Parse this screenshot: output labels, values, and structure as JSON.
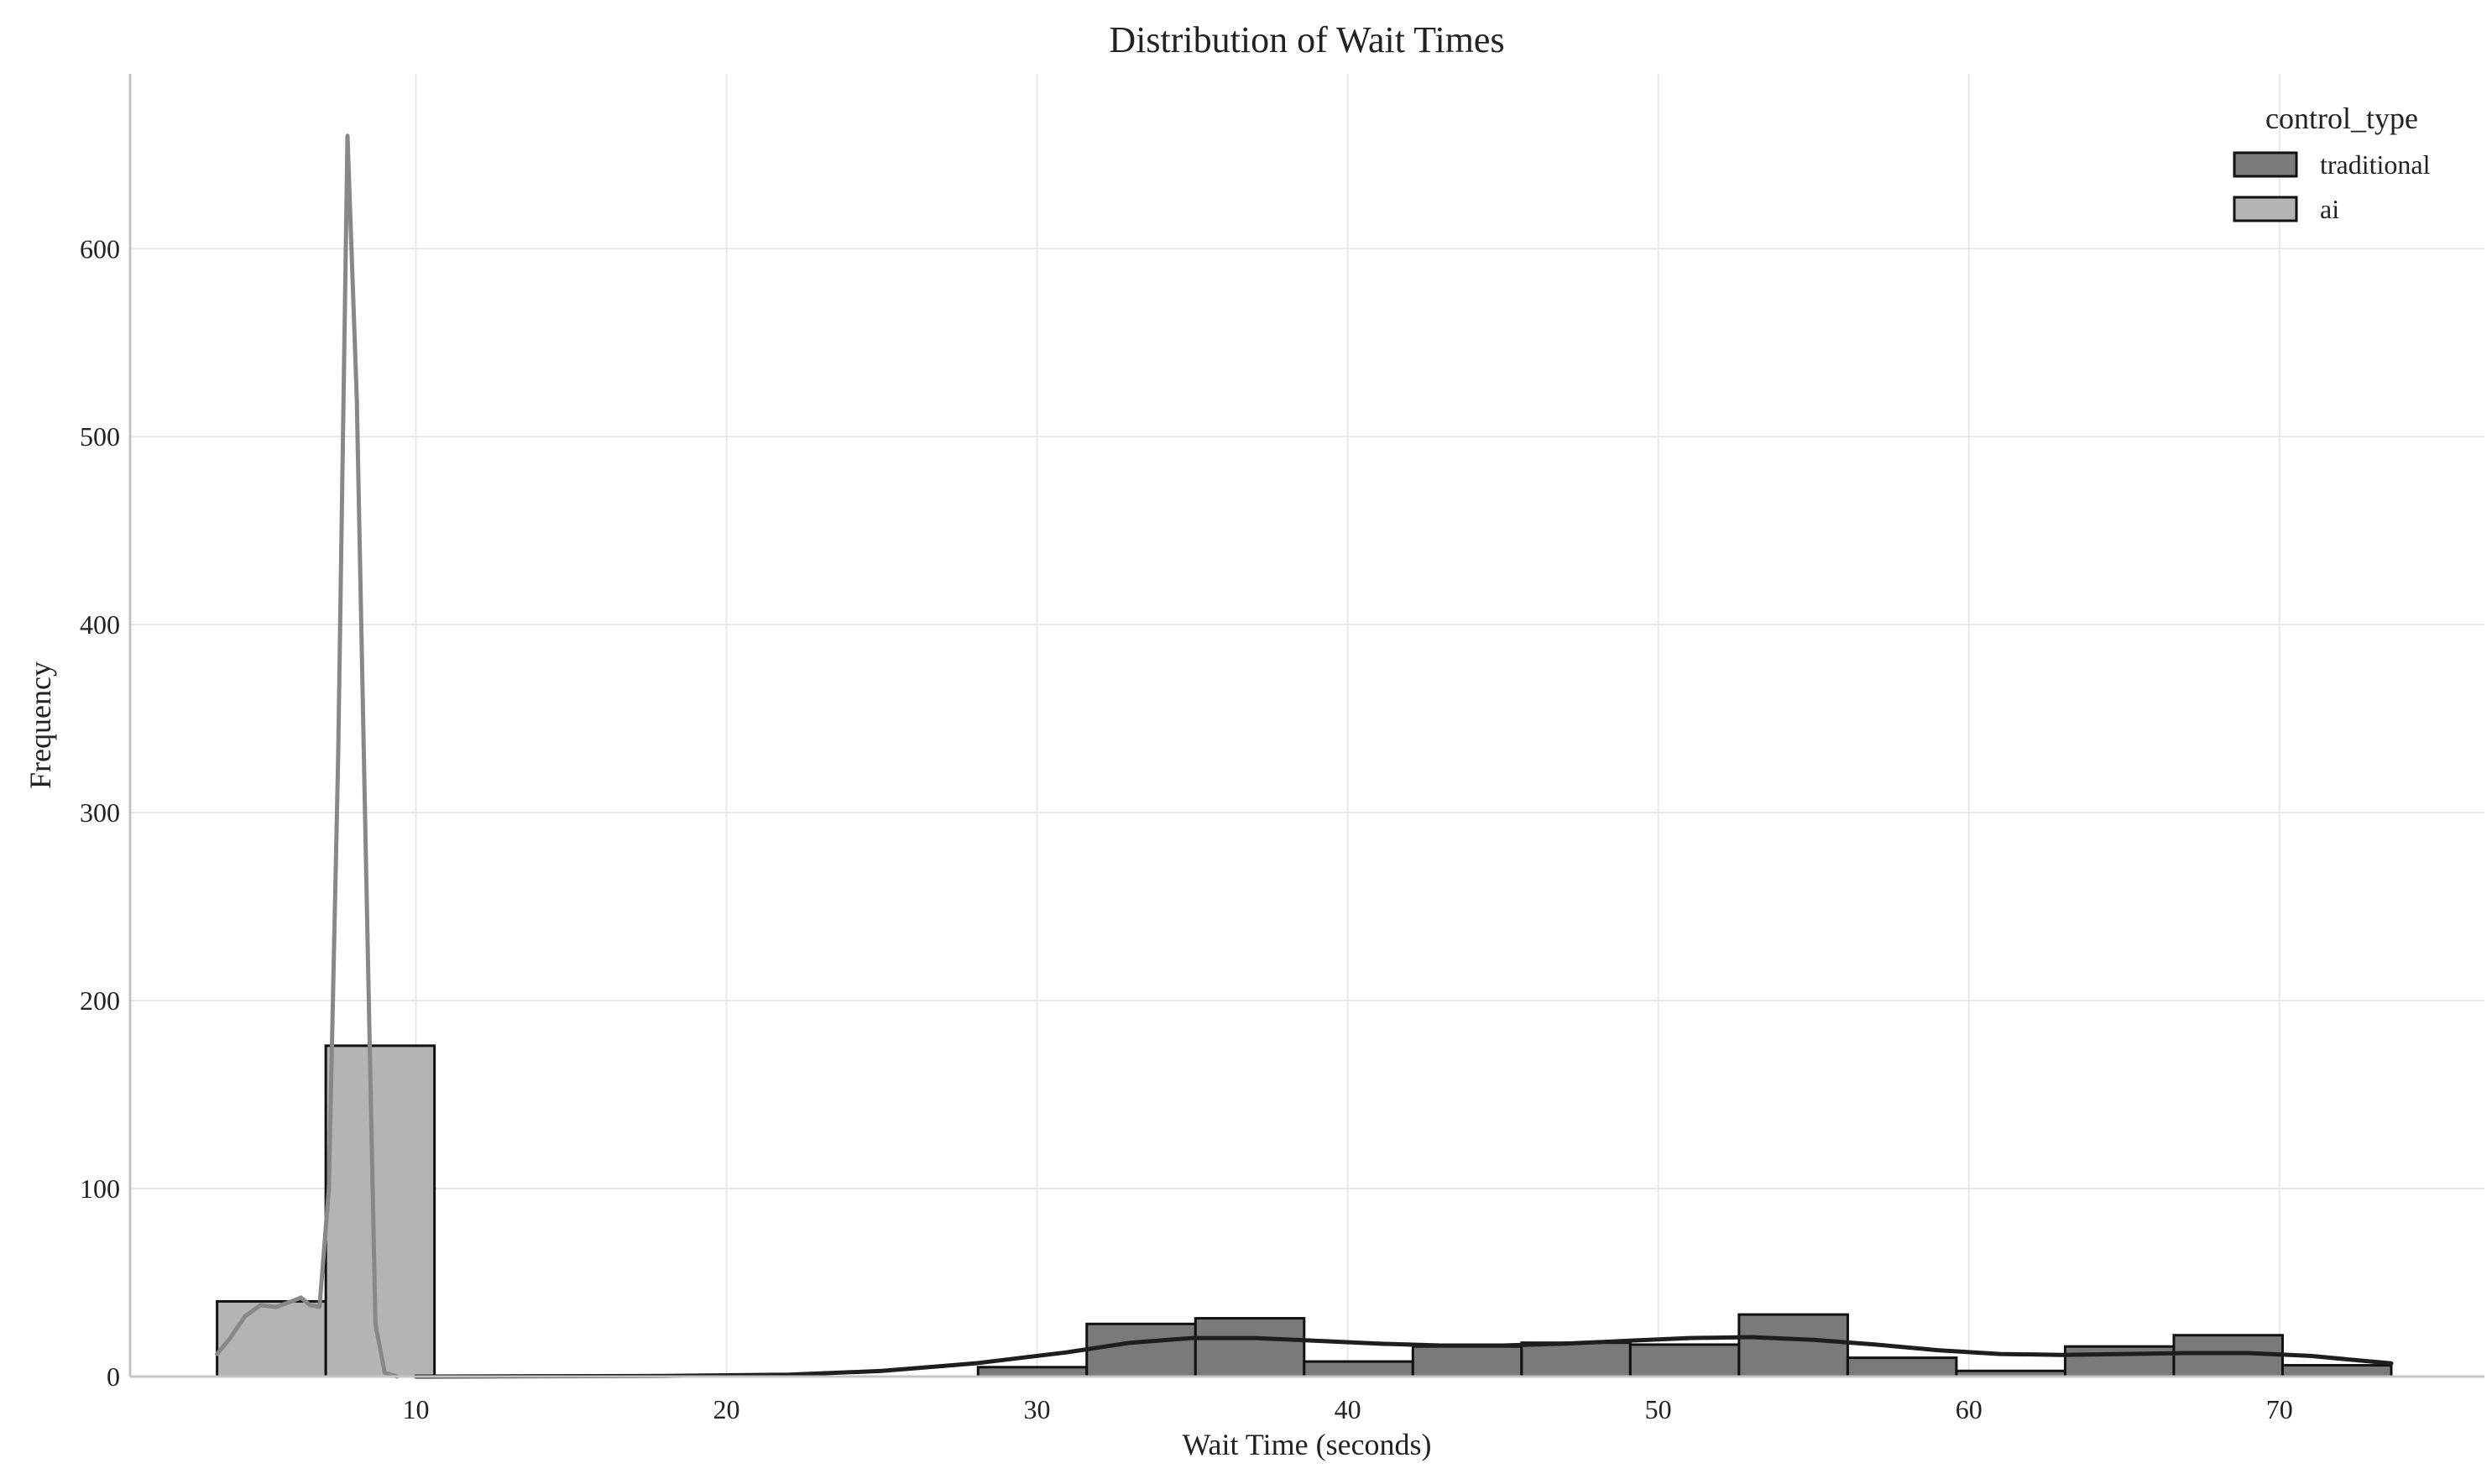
{
  "chart_data": {
    "type": "histogram",
    "title": "Distribution of Wait Times",
    "xlabel": "Wait Time (seconds)",
    "ylabel": "Frequency",
    "xlim": [
      0.8,
      76.6
    ],
    "ylim": [
      0,
      693
    ],
    "xticks": [
      10,
      20,
      30,
      40,
      50,
      60,
      70
    ],
    "yticks": [
      0,
      100,
      200,
      300,
      400,
      500,
      600
    ],
    "grid": true,
    "legend": {
      "title": "control_type",
      "placement": "top-right"
    },
    "series": [
      {
        "name": "traditional",
        "color": "#7a7a7a",
        "kde_color": "#1e1e1e",
        "bins": [
          {
            "x0": 28.1,
            "x1": 31.6,
            "count": 5
          },
          {
            "x0": 31.6,
            "x1": 35.1,
            "count": 28
          },
          {
            "x0": 35.1,
            "x1": 38.6,
            "count": 31
          },
          {
            "x0": 38.6,
            "x1": 42.1,
            "count": 8
          },
          {
            "x0": 42.1,
            "x1": 45.6,
            "count": 16
          },
          {
            "x0": 45.6,
            "x1": 49.1,
            "count": 18
          },
          {
            "x0": 49.1,
            "x1": 52.6,
            "count": 17
          },
          {
            "x0": 52.6,
            "x1": 56.1,
            "count": 33
          },
          {
            "x0": 56.1,
            "x1": 59.6,
            "count": 10
          },
          {
            "x0": 59.6,
            "x1": 63.1,
            "count": 3
          },
          {
            "x0": 63.1,
            "x1": 66.6,
            "count": 16
          },
          {
            "x0": 66.6,
            "x1": 70.1,
            "count": 22
          },
          {
            "x0": 70.1,
            "x1": 73.6,
            "count": 6
          }
        ],
        "kde": [
          [
            10,
            0
          ],
          [
            18,
            0.3
          ],
          [
            22,
            1
          ],
          [
            25,
            3
          ],
          [
            28,
            7
          ],
          [
            31,
            13
          ],
          [
            33,
            18
          ],
          [
            35,
            20.5
          ],
          [
            37,
            20.5
          ],
          [
            39,
            19
          ],
          [
            41,
            17.5
          ],
          [
            43,
            16.5
          ],
          [
            45,
            16.5
          ],
          [
            47,
            17.5
          ],
          [
            49,
            19
          ],
          [
            51,
            20.5
          ],
          [
            53,
            21
          ],
          [
            55,
            19.5
          ],
          [
            57,
            17
          ],
          [
            59,
            14
          ],
          [
            61,
            12
          ],
          [
            63,
            11.5
          ],
          [
            65,
            12
          ],
          [
            67,
            12.5
          ],
          [
            69,
            12.5
          ],
          [
            71,
            11
          ],
          [
            73.6,
            7
          ]
        ]
      },
      {
        "name": "ai",
        "color": "#b4b4b4",
        "kde_color": "#888888",
        "bins": [
          {
            "x0": 3.6,
            "x1": 7.1,
            "count": 40
          },
          {
            "x0": 7.1,
            "x1": 10.6,
            "count": 176
          }
        ],
        "kde": [
          [
            3.6,
            12
          ],
          [
            4.0,
            20
          ],
          [
            4.5,
            32
          ],
          [
            5.0,
            38
          ],
          [
            5.5,
            37
          ],
          [
            6.0,
            40
          ],
          [
            6.3,
            42
          ],
          [
            6.6,
            38
          ],
          [
            6.9,
            37
          ],
          [
            7.2,
            100
          ],
          [
            7.5,
            330
          ],
          [
            7.8,
            660
          ],
          [
            8.1,
            520
          ],
          [
            8.4,
            270
          ],
          [
            8.7,
            28
          ],
          [
            9.0,
            2
          ],
          [
            9.4,
            0
          ]
        ]
      }
    ]
  }
}
